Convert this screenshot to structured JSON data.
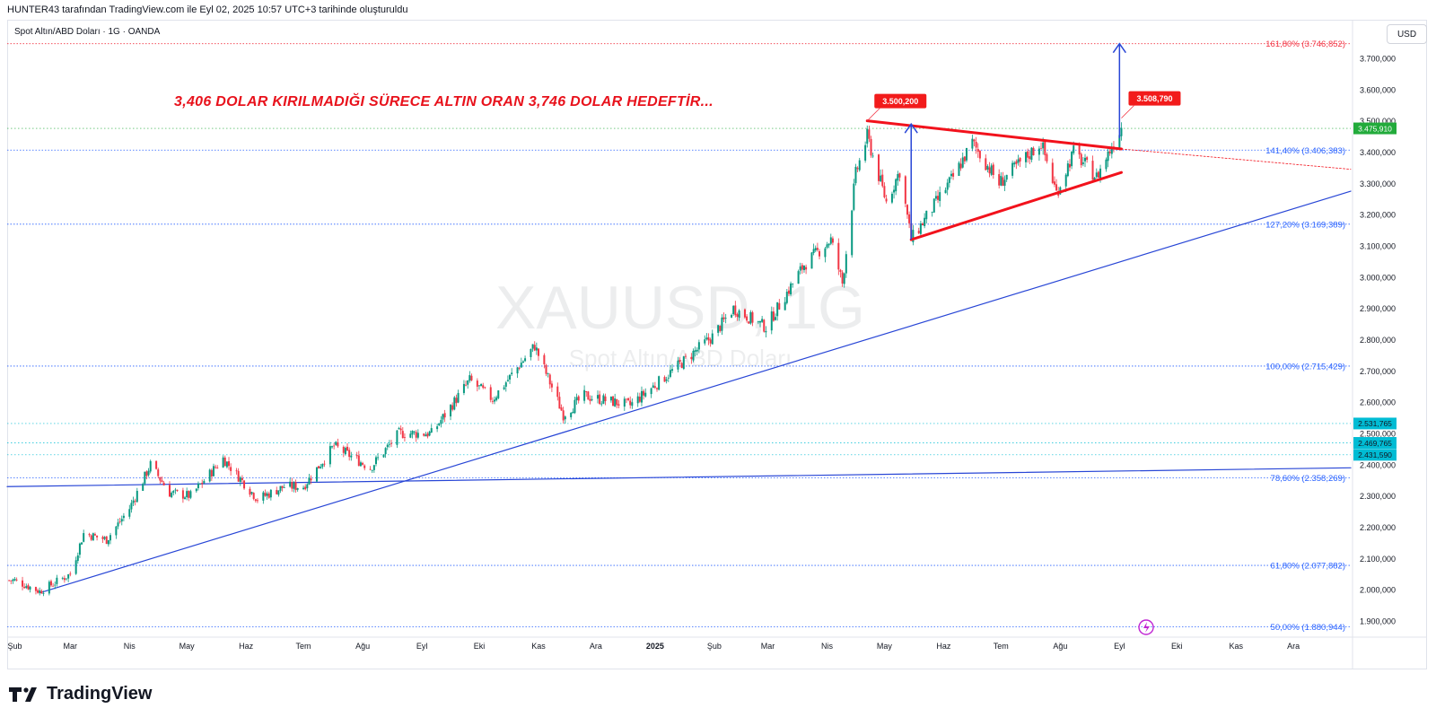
{
  "header": {
    "created_by": "HUNTER43 tarafından TradingView.com ile Eyl 02, 2025 10:57 UTC+3 tarihinde oluşturuldu"
  },
  "symbol_info": "Spot Altın/ABD Doları · 1G · OANDA",
  "currency_button": "USD",
  "annotation_text": "3,406 DOLAR KIRILMADIĞI SÜRECE ALTIN ORAN 3,746 DOLAR  HEDEFTİR...",
  "watermark": {
    "symbol": "XAUUSD, 1G",
    "name": "Spot Altın/ABD Doları"
  },
  "brand": {
    "name": "TradingView"
  },
  "colors": {
    "up": "#089981",
    "down": "#f23645",
    "trend": "#f2121c",
    "blue_line": "#2846d6",
    "fib_red": "#f23645",
    "fib_blue": "#2962ff",
    "last_price": "#22ab3b",
    "cyan": "#00bcd4"
  },
  "chart_data": {
    "type": "candlestick",
    "title": "",
    "ylim": [
      1850,
      3800
    ],
    "y_ticks": [
      "1.900,000",
      "2.000,000",
      "2.100,000",
      "2.200,000",
      "2.300,000",
      "2.400,000",
      "2.500,000",
      "2.600,000",
      "2.700,000",
      "2.800,000",
      "2.900,000",
      "3.000,000",
      "3.100,000",
      "3.200,000",
      "3.300,000",
      "3.400,000",
      "3.500,000",
      "3.600,000",
      "3.700,000"
    ],
    "x_ticks": [
      "Şub",
      "Mar",
      "Nis",
      "May",
      "Haz",
      "Tem",
      "Ağu",
      "Eyl",
      "Eki",
      "Kas",
      "Ara",
      "2025",
      "Şub",
      "Mar",
      "Nis",
      "May",
      "Haz",
      "Tem",
      "Ağu",
      "Eyl",
      "Eki",
      "Kas",
      "Ara"
    ],
    "x_range": [
      "2024-01-28",
      "2025-12-31"
    ],
    "price_path": [
      [
        "2024-02-01",
        2030
      ],
      [
        "2024-02-14",
        1995
      ],
      [
        "2024-03-01",
        2050
      ],
      [
        "2024-03-08",
        2180
      ],
      [
        "2024-03-20",
        2160
      ],
      [
        "2024-04-01",
        2260
      ],
      [
        "2024-04-12",
        2400
      ],
      [
        "2024-04-22",
        2310
      ],
      [
        "2024-05-03",
        2300
      ],
      [
        "2024-05-20",
        2420
      ],
      [
        "2024-06-07",
        2290
      ],
      [
        "2024-06-21",
        2330
      ],
      [
        "2024-07-01",
        2330
      ],
      [
        "2024-07-17",
        2460
      ],
      [
        "2024-08-05",
        2390
      ],
      [
        "2024-08-20",
        2500
      ],
      [
        "2024-09-06",
        2500
      ],
      [
        "2024-09-26",
        2670
      ],
      [
        "2024-10-08",
        2610
      ],
      [
        "2024-10-30",
        2780
      ],
      [
        "2024-11-14",
        2560
      ],
      [
        "2024-11-25",
        2620
      ],
      [
        "2024-12-19",
        2590
      ],
      [
        "2025-01-10",
        2700
      ],
      [
        "2025-01-31",
        2810
      ],
      [
        "2025-02-11",
        2900
      ],
      [
        "2025-02-28",
        2840
      ],
      [
        "2025-03-20",
        3040
      ],
      [
        "2025-04-03",
        3120
      ],
      [
        "2025-04-09",
        2980
      ],
      [
        "2025-04-16",
        3330
      ],
      [
        "2025-04-22",
        3450
      ],
      [
        "2025-05-02",
        3240
      ],
      [
        "2025-05-09",
        3340
      ],
      [
        "2025-05-15",
        3120
      ],
      [
        "2025-06-06",
        3320
      ],
      [
        "2025-06-16",
        3430
      ],
      [
        "2025-06-30",
        3300
      ],
      [
        "2025-07-22",
        3430
      ],
      [
        "2025-07-30",
        3270
      ],
      [
        "2025-08-08",
        3400
      ],
      [
        "2025-08-20",
        3320
      ],
      [
        "2025-09-02",
        3480
      ]
    ],
    "fib_levels": [
      {
        "label": "161,80% (3.746,852)",
        "value": 3746.852,
        "color": "red"
      },
      {
        "label": "141,40% (3.406,383)",
        "value": 3406.383,
        "color": "blue"
      },
      {
        "label": "127,20% (3.169,389)",
        "value": 3169.389,
        "color": "blue"
      },
      {
        "label": "100,00% (2.715,429)",
        "value": 2715.429,
        "color": "blue"
      },
      {
        "label": "78,60% (2.358,269)",
        "value": 2358.269,
        "color": "blue"
      },
      {
        "label": "61,80% (2.077,882)",
        "value": 2077.882,
        "color": "blue"
      },
      {
        "label": "50,00% (1.880,944)",
        "value": 1880.944,
        "color": "blue"
      }
    ],
    "price_labels": [
      {
        "text": "3.475,910",
        "value": 3475.91,
        "style": "last"
      },
      {
        "text": "2.531,765",
        "value": 2531.765,
        "style": "cyan"
      },
      {
        "text": "2.469,765",
        "value": 2469.765,
        "style": "cyan"
      },
      {
        "text": "2.431,590",
        "value": 2431.59,
        "style": "cyan"
      }
    ],
    "callouts": [
      {
        "text": "3.500,200",
        "date": "2025-04-22",
        "value": 3500.2
      },
      {
        "text": "3.508,790",
        "date": "2025-09-02",
        "value": 3508.79
      }
    ],
    "trendlines": {
      "triangle_upper": [
        [
          "2025-04-22",
          3500
        ],
        [
          "2025-09-02",
          3410
        ]
      ],
      "triangle_upper_ext": [
        [
          "2025-09-02",
          3410
        ],
        [
          "2025-12-31",
          3345
        ]
      ],
      "triangle_lower": [
        [
          "2025-05-15",
          3120
        ],
        [
          "2025-09-02",
          3335
        ]
      ],
      "long_support": [
        [
          "2024-02-14",
          1990
        ],
        [
          "2025-12-31",
          3275
        ]
      ],
      "horizontal_support": [
        [
          "2024-01-28",
          2330
        ],
        [
          "2025-12-31",
          2390
        ]
      ]
    },
    "arrows": [
      {
        "date": "2025-05-15",
        "from": 3120,
        "to": 3490
      },
      {
        "date": "2025-09-01",
        "from": 3445,
        "to": 3746.852
      }
    ]
  }
}
